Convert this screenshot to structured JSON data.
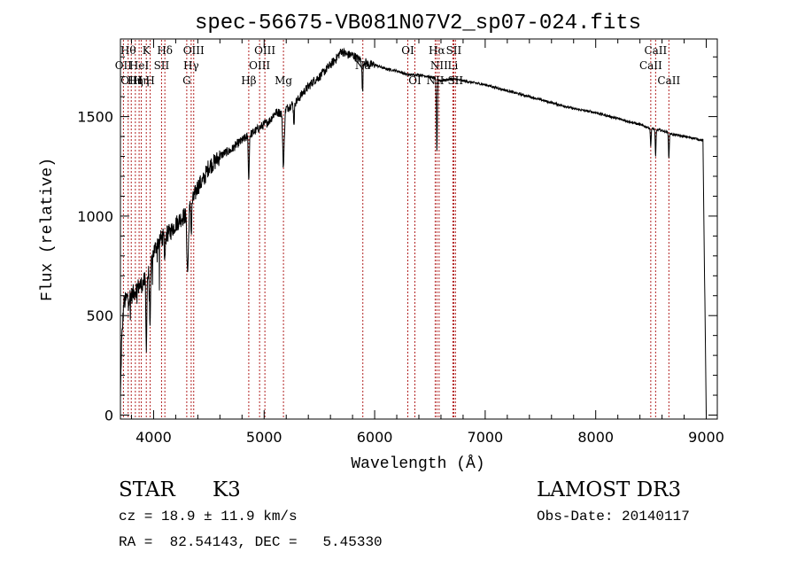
{
  "chart_data": {
    "type": "line",
    "title": "spec-56675-VB081N07V2_sp07-024.fits",
    "xlabel": "Wavelength (Å)",
    "ylabel": "Flux (relative)",
    "xlim": [
      3700,
      9100
    ],
    "ylim": [
      -20,
      1890
    ],
    "xticks": [
      4000,
      5000,
      6000,
      7000,
      8000,
      9000
    ],
    "yticks": [
      0,
      500,
      1000,
      1500
    ],
    "xtick_labels": [
      "4000",
      "5000",
      "6000",
      "7000",
      "8000",
      "9000"
    ],
    "ytick_labels": [
      "0",
      "500",
      "1000",
      "1500"
    ],
    "grid": false,
    "series": [
      {
        "name": "flux",
        "x": [
          3700,
          3710,
          3730,
          3760,
          3800,
          3850,
          3900,
          3950,
          4000,
          4050,
          4100,
          4150,
          4200,
          4250,
          4300,
          4350,
          4400,
          4450,
          4500,
          4550,
          4600,
          4650,
          4700,
          4750,
          4800,
          4850,
          4900,
          4950,
          5000,
          5050,
          5100,
          5150,
          5200,
          5250,
          5300,
          5350,
          5400,
          5450,
          5500,
          5550,
          5600,
          5650,
          5700,
          5750,
          5800,
          5850,
          5900,
          5950,
          6000,
          6100,
          6200,
          6300,
          6400,
          6500,
          6550,
          6600,
          6700,
          6800,
          6900,
          7000,
          7200,
          7400,
          7600,
          7800,
          8000,
          8200,
          8400,
          8500,
          8600,
          8700,
          8800,
          8900,
          8970,
          9000
        ],
        "y": [
          80,
          350,
          560,
          590,
          600,
          640,
          660,
          700,
          820,
          880,
          900,
          920,
          960,
          990,
          1010,
          1070,
          1150,
          1180,
          1250,
          1270,
          1300,
          1320,
          1330,
          1360,
          1380,
          1400,
          1420,
          1440,
          1460,
          1480,
          1520,
          1520,
          1540,
          1560,
          1580,
          1620,
          1650,
          1680,
          1700,
          1730,
          1760,
          1790,
          1830,
          1810,
          1810,
          1790,
          1780,
          1760,
          1760,
          1740,
          1730,
          1710,
          1710,
          1700,
          1690,
          1680,
          1690,
          1680,
          1670,
          1660,
          1630,
          1600,
          1570,
          1540,
          1520,
          1490,
          1460,
          1440,
          1430,
          1410,
          1400,
          1390,
          1380,
          0
        ]
      }
    ],
    "absorption_features": [
      {
        "x": 3934,
        "depth": 350,
        "width": 6
      },
      {
        "x": 3969,
        "depth": 300,
        "width": 6
      },
      {
        "x": 4102,
        "depth": 120,
        "width": 6
      },
      {
        "x": 4308,
        "depth": 300,
        "width": 10
      },
      {
        "x": 4341,
        "depth": 150,
        "width": 5
      },
      {
        "x": 4861,
        "depth": 230,
        "width": 6
      },
      {
        "x": 5175,
        "depth": 280,
        "width": 10
      },
      {
        "x": 5270,
        "depth": 100,
        "width": 6
      },
      {
        "x": 5890,
        "depth": 160,
        "width": 6
      },
      {
        "x": 6563,
        "depth": 360,
        "width": 6
      },
      {
        "x": 8498,
        "depth": 90,
        "width": 5
      },
      {
        "x": 8542,
        "depth": 140,
        "width": 5
      },
      {
        "x": 8662,
        "depth": 130,
        "width": 5
      }
    ],
    "line_markers": [
      {
        "x": 3727,
        "row": 1,
        "label": "OII"
      },
      {
        "x": 3770,
        "row": 0,
        "label": "Hθ"
      },
      {
        "x": 3798,
        "row": 2,
        "label": "OIII"
      },
      {
        "x": 3835,
        "row": 2,
        "label": "Hη"
      },
      {
        "x": 3869,
        "row": 1,
        "label": "HeI"
      },
      {
        "x": 3889,
        "row": 2,
        "label": "Hη"
      },
      {
        "x": 3934,
        "row": 0,
        "label": "K"
      },
      {
        "x": 3969,
        "row": 2,
        "label": "H"
      },
      {
        "x": 4072,
        "row": 1,
        "label": "SII"
      },
      {
        "x": 4102,
        "row": 0,
        "label": "Hδ"
      },
      {
        "x": 4300,
        "row": 2,
        "label": "G"
      },
      {
        "x": 4340,
        "row": 1,
        "label": "Hγ"
      },
      {
        "x": 4363,
        "row": 0,
        "label": "OIII"
      },
      {
        "x": 4861,
        "row": 2,
        "label": "Hβ"
      },
      {
        "x": 4959,
        "row": 1,
        "label": "OIII"
      },
      {
        "x": 5007,
        "row": 0,
        "label": "OIII"
      },
      {
        "x": 5175,
        "row": 2,
        "label": "Mg"
      },
      {
        "x": 5893,
        "row": 1,
        "label": "Na"
      },
      {
        "x": 6300,
        "row": 0,
        "label": "OI"
      },
      {
        "x": 6364,
        "row": 2,
        "label": "OI"
      },
      {
        "x": 6548,
        "row": 2,
        "label": "NII"
      },
      {
        "x": 6563,
        "row": 0,
        "label": "Hα"
      },
      {
        "x": 6583,
        "row": 1,
        "label": "NII"
      },
      {
        "x": 6708,
        "row": 1,
        "label": "Li"
      },
      {
        "x": 6716,
        "row": 0,
        "label": "SII"
      },
      {
        "x": 6731,
        "row": 2,
        "label": "SII"
      },
      {
        "x": 8498,
        "row": 1,
        "label": "CaII"
      },
      {
        "x": 8542,
        "row": 0,
        "label": "CaII"
      },
      {
        "x": 8662,
        "row": 2,
        "label": "CaII"
      }
    ]
  },
  "info": {
    "class_label": "STAR",
    "subclass": "K3",
    "survey": "LAMOST DR3",
    "redshift_text": "cz = 18.9 ± 11.9 km/s",
    "obs_date_text": "Obs-Date: 20140117",
    "coords_text": "RA =  82.54143, DEC =   5.45330"
  },
  "colors": {
    "marker": "#b22222",
    "axes": "#000000",
    "spectrum": "#000000"
  }
}
